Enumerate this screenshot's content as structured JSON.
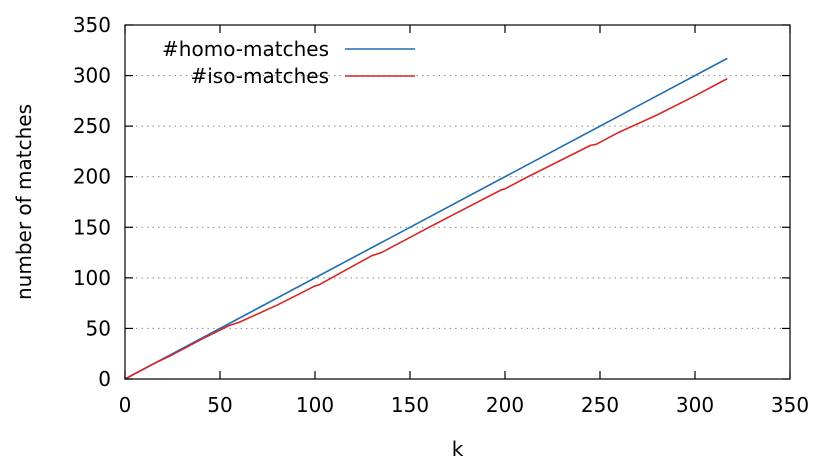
{
  "chart_data": {
    "type": "line",
    "xlabel": "k",
    "ylabel": "number of matches",
    "xlim": [
      0,
      350
    ],
    "ylim": [
      0,
      350
    ],
    "xticks": [
      "0",
      "50",
      "100",
      "150",
      "200",
      "250",
      "300",
      "350"
    ],
    "yticks": [
      "0",
      "50",
      "100",
      "150",
      "200",
      "250",
      "300",
      "350"
    ],
    "grid": "horizontal dotted",
    "legend_position": "top-left",
    "series": [
      {
        "name": "#homo-matches",
        "color": "#1f6db3",
        "points": [
          [
            0,
            0
          ],
          [
            317,
            317
          ]
        ]
      },
      {
        "name": "#iso-matches",
        "color": "#d62728",
        "points": [
          [
            0,
            0
          ],
          [
            15,
            15
          ],
          [
            25,
            24
          ],
          [
            40,
            39
          ],
          [
            55,
            53
          ],
          [
            60,
            56
          ],
          [
            80,
            73
          ],
          [
            100,
            92
          ],
          [
            102,
            93
          ],
          [
            130,
            122
          ],
          [
            135,
            125
          ],
          [
            160,
            150
          ],
          [
            198,
            187
          ],
          [
            200,
            188
          ],
          [
            210,
            198
          ],
          [
            245,
            231
          ],
          [
            248,
            232
          ],
          [
            260,
            244
          ],
          [
            280,
            261
          ],
          [
            300,
            280
          ],
          [
            317,
            297
          ]
        ]
      }
    ]
  }
}
